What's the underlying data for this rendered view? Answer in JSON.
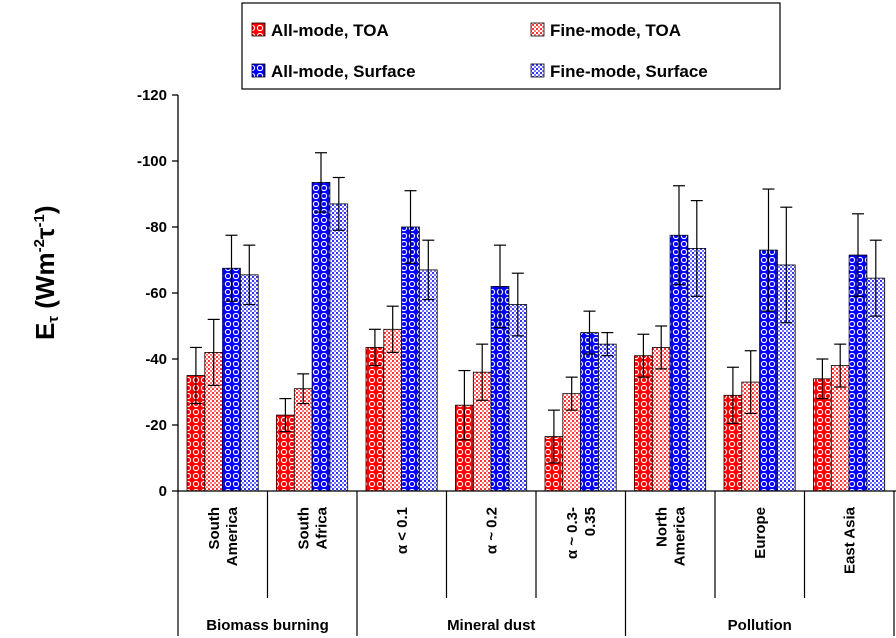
{
  "chart_data": {
    "type": "bar",
    "ylabel": {
      "base": "E",
      "sub": "τ",
      "unit_open": " (Wm",
      "exp1": "-2",
      "mid": "τ",
      "exp2": "-1",
      "unit_close": ")"
    },
    "ylim": [
      0,
      -120
    ],
    "yticks": [
      0,
      -20,
      -40,
      -60,
      -80,
      -100,
      -120
    ],
    "grid": false,
    "legend_position": "top",
    "categories": [
      {
        "lines": [
          "South",
          "America"
        ]
      },
      {
        "lines": [
          "South",
          "Africa"
        ]
      },
      {
        "lines": [
          "α < 0.1"
        ]
      },
      {
        "lines": [
          "α ~ 0.2"
        ]
      },
      {
        "lines": [
          "α ~ 0.3-",
          "0.35"
        ]
      },
      {
        "lines": [
          "North",
          "America"
        ]
      },
      {
        "lines": [
          "Europe"
        ]
      },
      {
        "lines": [
          "East Asia"
        ]
      }
    ],
    "groups": [
      {
        "label": "Biomass burning",
        "start": 0,
        "end": 1
      },
      {
        "label": "Mineral dust",
        "start": 2,
        "end": 4
      },
      {
        "label": "Pollution",
        "start": 5,
        "end": 7
      }
    ],
    "series": [
      {
        "name": "All-mode, TOA",
        "color": "#ff0000",
        "pattern": "circles",
        "values": [
          -35,
          -23,
          -43.5,
          -26,
          -16.5,
          -41,
          -29,
          -34
        ],
        "errors": [
          8.5,
          5,
          5.5,
          10.5,
          8,
          6.5,
          8.5,
          6
        ]
      },
      {
        "name": "Fine-mode, TOA",
        "color": "#ff9999",
        "pattern": "dots",
        "values": [
          -42,
          -31,
          -49,
          -36,
          -29.5,
          -43.5,
          -33,
          -38
        ],
        "errors": [
          10,
          4.5,
          7,
          8.5,
          5,
          6.5,
          9.5,
          6.5
        ]
      },
      {
        "name": "All-mode, Surface",
        "color": "#0000ff",
        "pattern": "circles",
        "values": [
          -67.5,
          -93.5,
          -80,
          -62,
          -48,
          -77.5,
          -73,
          -71.5
        ],
        "errors": [
          10,
          9,
          11,
          12.5,
          6.5,
          15,
          18.5,
          12.5
        ]
      },
      {
        "name": "Fine-mode, Surface",
        "color": "#9999ff",
        "pattern": "dots",
        "values": [
          -65.5,
          -87,
          -67,
          -56.5,
          -44.5,
          -73.5,
          -68.5,
          -64.5
        ],
        "errors": [
          9,
          8,
          9,
          9.5,
          3.5,
          14.5,
          17.5,
          11.5
        ]
      }
    ]
  }
}
